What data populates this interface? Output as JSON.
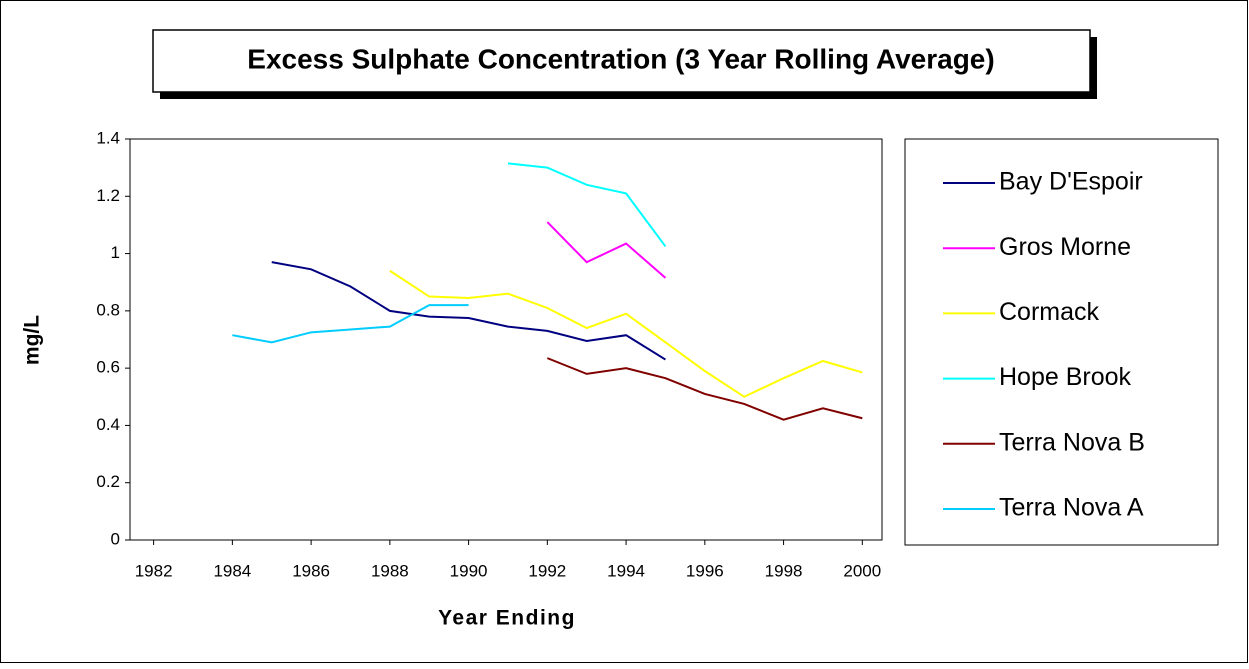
{
  "chart_data": {
    "type": "line",
    "title": "Excess Sulphate Concentration (3 Year Rolling Average)",
    "x_label": "Year Ending",
    "y_label": "mg/L",
    "x": [
      1984,
      1985,
      1986,
      1987,
      1988,
      1989,
      1990,
      1991,
      1992,
      1993,
      1994,
      1995,
      1996,
      1997,
      1998,
      1999,
      2000
    ],
    "series": [
      {
        "name": "Bay D'Espoir",
        "color": "#000080",
        "values": [
          null,
          0.97,
          0.945,
          0.885,
          0.8,
          0.78,
          0.775,
          0.745,
          0.73,
          0.695,
          0.715,
          0.63,
          null,
          null,
          null,
          null,
          null
        ]
      },
      {
        "name": "Gros Morne",
        "color": "#ff00ff",
        "values": [
          null,
          null,
          null,
          null,
          null,
          null,
          null,
          null,
          1.11,
          0.97,
          1.035,
          0.915,
          null,
          null,
          null,
          null,
          null
        ]
      },
      {
        "name": "Cormack",
        "color": "#ffff00",
        "values": [
          null,
          null,
          null,
          null,
          0.94,
          0.85,
          0.845,
          0.86,
          0.81,
          0.74,
          0.79,
          0.69,
          0.59,
          0.5,
          0.565,
          0.625,
          0.585
        ]
      },
      {
        "name": "Hope Brook",
        "color": "#00ffff",
        "values": [
          null,
          null,
          null,
          null,
          null,
          null,
          null,
          1.315,
          1.3,
          1.24,
          1.21,
          1.025,
          null,
          null,
          null,
          null,
          null
        ]
      },
      {
        "name": "Terra Nova B",
        "color": "#800000",
        "values": [
          null,
          null,
          null,
          null,
          null,
          null,
          null,
          null,
          0.635,
          0.58,
          0.6,
          0.565,
          0.51,
          0.475,
          0.42,
          0.46,
          0.425
        ]
      },
      {
        "name": "Terra Nova A",
        "color": "#00ccff",
        "values": [
          0.715,
          0.69,
          0.725,
          0.735,
          0.745,
          0.82,
          0.82,
          null,
          null,
          null,
          null,
          null,
          null,
          null,
          null,
          null,
          null
        ]
      }
    ],
    "xlim": [
      1981.4,
      2000.5
    ],
    "xticks": [
      1982,
      1984,
      1986,
      1988,
      1990,
      1992,
      1994,
      1996,
      1998,
      2000
    ],
    "ylim": [
      0,
      1.4
    ],
    "yticks": [
      0,
      0.2,
      0.4,
      0.6,
      0.8,
      1,
      1.2,
      1.4
    ],
    "legend": "right",
    "grid": false
  }
}
